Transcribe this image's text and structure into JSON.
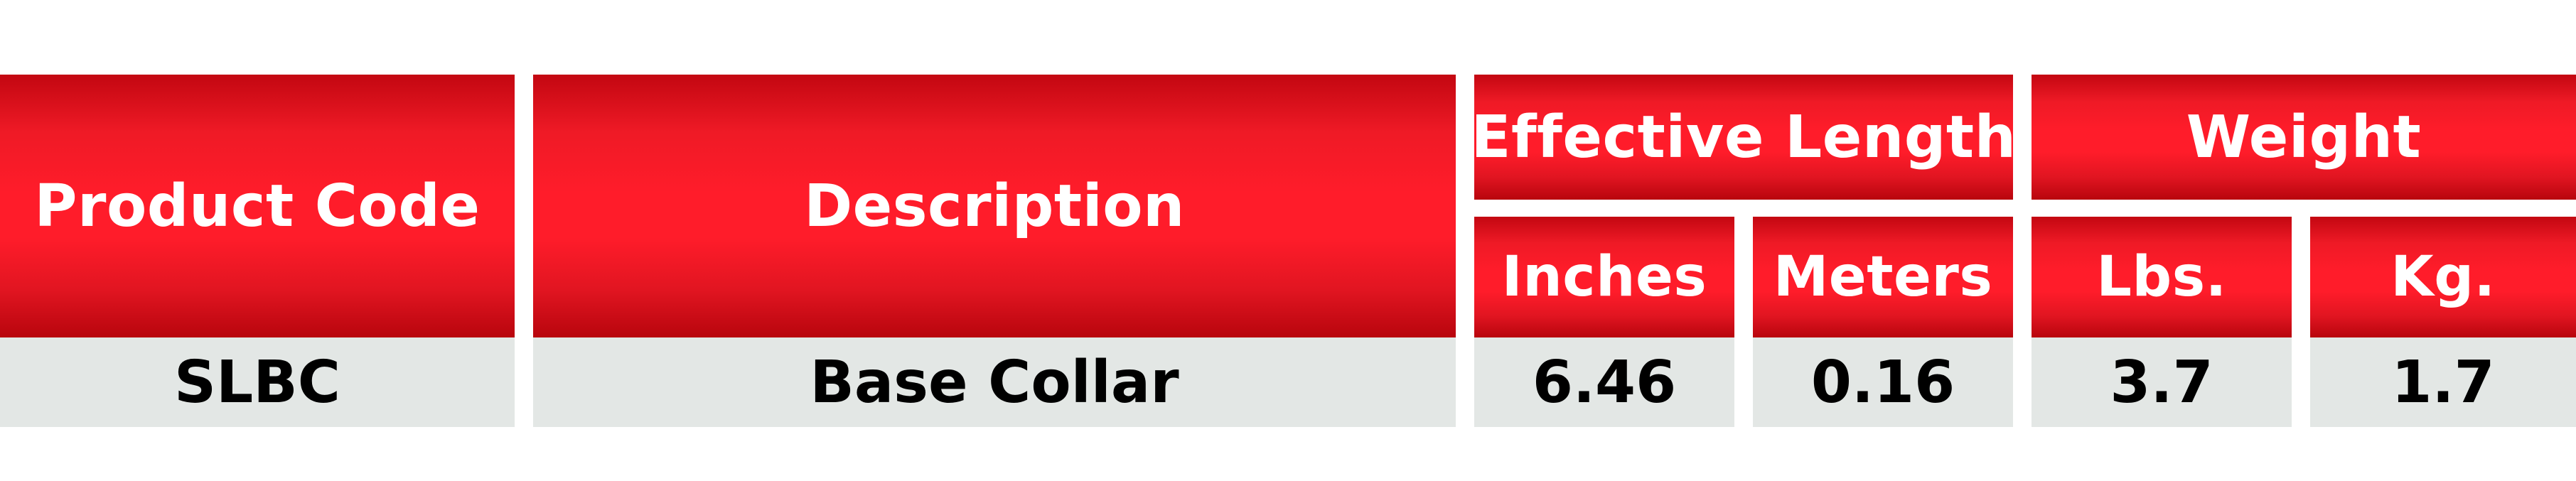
{
  "table": {
    "headers": {
      "product_code": "Product Code",
      "description": "Description",
      "effective_length": "Effective Length",
      "weight": "Weight",
      "inches": "Inches",
      "meters": "Meters",
      "lbs": "Lbs.",
      "kg": "Kg."
    },
    "row": {
      "product_code": "SLBC",
      "description": "Base Collar",
      "inches": "6.46",
      "meters": "0.16",
      "lbs": "3.7",
      "kg": "1.7"
    },
    "colors": {
      "header_red": "#ff1c2a",
      "header_dark_red": "#c30711",
      "row_background": "#e3e7e5",
      "header_text": "#ffffff",
      "row_text": "#000000"
    }
  }
}
